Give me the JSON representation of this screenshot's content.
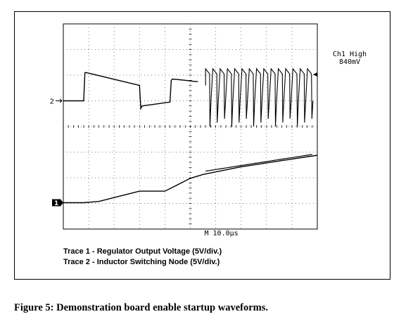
{
  "chart_data": {
    "type": "line",
    "timebase": "M 10.0µs",
    "grid": true,
    "grid_divisions": [
      10,
      8
    ],
    "trigger": {
      "label": "Ch1 High",
      "value": "840mV"
    },
    "series": [
      {
        "name": "Trace 1 - Regulator Output Voltage (5V/div.)",
        "marker": "1",
        "unit_per_div": "5V/div.",
        "x": [
          0,
          8,
          14,
          24,
          30,
          40,
          50,
          55,
          60,
          70,
          80,
          90,
          100
        ],
        "y": [
          0,
          0,
          0.05,
          0.3,
          0.45,
          0.45,
          0.95,
          1.1,
          1.2,
          1.4,
          1.55,
          1.7,
          1.85
        ]
      },
      {
        "name": "Trace 2 - Inductor Switching Node (5V/div.)",
        "marker": "2",
        "unit_per_div": "5V/div.",
        "x": [
          0,
          8,
          8.5,
          9,
          30,
          30.5,
          31,
          42,
          42.5,
          43,
          48,
          52,
          53
        ],
        "y": [
          0,
          0,
          1.1,
          1.1,
          0.6,
          -0.3,
          -0.2,
          -0.05,
          0.8,
          0.85,
          0.8,
          0.75,
          0.75
        ]
      }
    ],
    "switching_burst": {
      "start": 56,
      "end": 99,
      "pulses": 15,
      "high": 1.25,
      "low": -1.0
    }
  },
  "legend": {
    "line1": "Trace 1 - Regulator Output Voltage (5V/div.)",
    "line2": "Trace 2 - Inductor Switching Node (5V/div.)"
  },
  "caption": "Figure 5: Demonstration board enable startup waveforms."
}
